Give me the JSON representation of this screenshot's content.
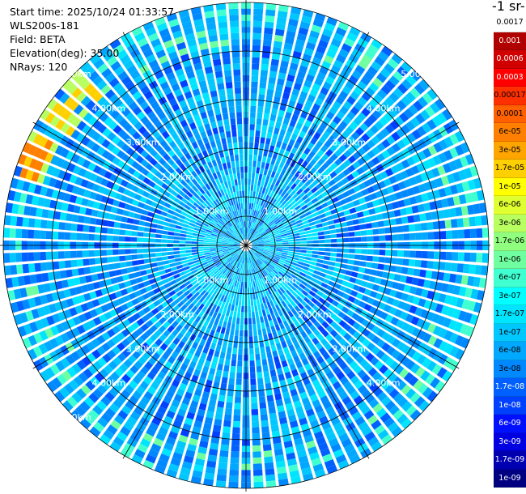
{
  "header": {
    "start_time": "Start time: 2025/10/24 01:33:57",
    "instrument": "WLS200s-181",
    "field": "Field: BETA",
    "elevation": "Elevation(deg): 35.00",
    "nrays": "NRays: 120"
  },
  "colorbar": {
    "unit_title": "-1 sr-",
    "labels": [
      "0.0017",
      "0.001",
      "0.0006",
      "0.0003",
      "0.00017",
      "0.0001",
      "6e-05",
      "3e-05",
      "1.7e-05",
      "1e-05",
      "6e-06",
      "3e-06",
      "1.7e-06",
      "1e-06",
      "6e-07",
      "3e-07",
      "1.7e-07",
      "1e-07",
      "6e-08",
      "3e-08",
      "1.7e-08",
      "1e-08",
      "6e-09",
      "3e-09",
      "1.7e-09",
      "1e-09"
    ],
    "colors": [
      "#ffffff",
      "#b00000",
      "#d00000",
      "#ff0000",
      "#ff3000",
      "#ff6000",
      "#ff8000",
      "#ffa500",
      "#ffd000",
      "#ffff00",
      "#e0ff30",
      "#b8ff60",
      "#90ff80",
      "#70ffa0",
      "#40ffd0",
      "#00ffff",
      "#00e5ff",
      "#00c8ff",
      "#00a8ff",
      "#0088ff",
      "#0060ff",
      "#0040ff",
      "#0010ff",
      "#0000e0",
      "#0000b0",
      "#000080"
    ],
    "text_white": [
      false,
      true,
      true,
      true,
      false,
      false,
      false,
      false,
      false,
      false,
      false,
      false,
      false,
      false,
      false,
      false,
      false,
      false,
      false,
      false,
      true,
      true,
      true,
      true,
      true,
      true
    ]
  },
  "chart_data": {
    "type": "heatmap",
    "title": "",
    "projection": "polar PPI",
    "rays": 120,
    "max_range_km": 5,
    "range_rings_km": [
      1,
      2,
      3,
      4,
      5
    ],
    "ring_labels": [
      "1.00km",
      "2.00km",
      "3.00km",
      "4.00km",
      "5.00km"
    ],
    "grid_spokes_deg": [
      0,
      30,
      60,
      90,
      120,
      150,
      180,
      210,
      240,
      270,
      300,
      330
    ],
    "colormap": "jet",
    "value_range": [
      1e-09,
      0.0017
    ],
    "dominant_value": "1e-08 to 6e-08"
  }
}
